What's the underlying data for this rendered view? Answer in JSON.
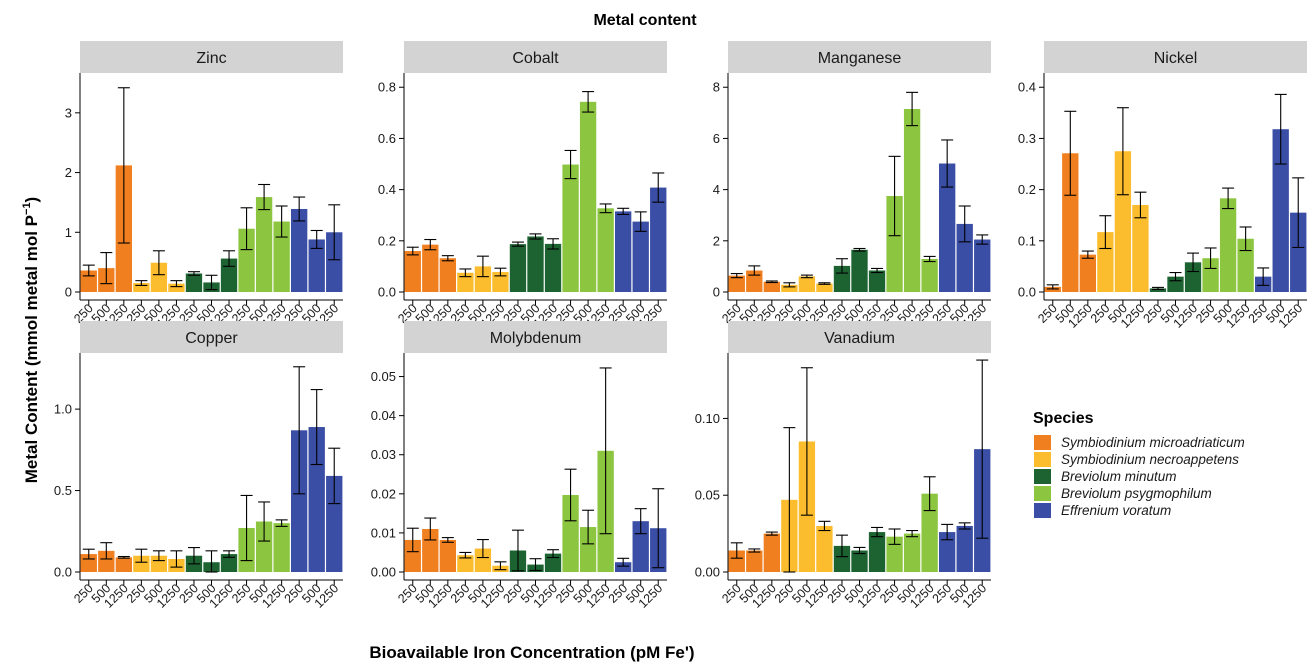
{
  "chart_data": {
    "type": "bar",
    "title": "Metal content",
    "xlabel": "Bioavailable Iron Concentration (pM Fe')",
    "ylabel": "Metal Content (mmol metal mol P",
    "ylabel_sup": "−1",
    "ylabel_close": ")",
    "categories": [
      "250",
      "500",
      "1250",
      "250",
      "500",
      "1250",
      "250",
      "500",
      "1250",
      "250",
      "500",
      "1250",
      "250",
      "500",
      "1250"
    ],
    "category_species": [
      0,
      0,
      0,
      1,
      1,
      1,
      2,
      2,
      2,
      3,
      3,
      3,
      4,
      4,
      4
    ],
    "legend": {
      "title": "Species",
      "entries": [
        {
          "name": "Symbiodinium microadriaticum",
          "color": "#f0801f"
        },
        {
          "name": "Symbiodinium necroappetens",
          "color": "#fbbd2d"
        },
        {
          "name": "Breviolum minutum",
          "color": "#1d6332"
        },
        {
          "name": "Breviolum psygmophilum",
          "color": "#8cc540"
        },
        {
          "name": "Effrenium voratum",
          "color": "#3a4ea5"
        }
      ]
    },
    "panels": [
      {
        "metal": "Zinc",
        "ylim": [
          0,
          3.6
        ],
        "yticks": [
          0,
          1,
          2,
          3
        ],
        "tick_labels": [
          "0",
          "1",
          "2",
          "3"
        ],
        "values": [
          0.36,
          0.4,
          2.12,
          0.15,
          0.49,
          0.14,
          0.31,
          0.16,
          0.56,
          1.06,
          1.59,
          1.18,
          1.39,
          0.88,
          1.0
        ],
        "errors": [
          0.09,
          0.26,
          1.3,
          0.04,
          0.2,
          0.05,
          0.03,
          0.12,
          0.13,
          0.35,
          0.21,
          0.26,
          0.2,
          0.15,
          0.46
        ]
      },
      {
        "metal": "Cobalt",
        "ylim": [
          0,
          0.84
        ],
        "yticks": [
          0,
          0.2,
          0.4,
          0.6,
          0.8
        ],
        "tick_labels": [
          "0.0",
          "0.2",
          "0.4",
          "0.6",
          "0.8"
        ],
        "values": [
          0.16,
          0.185,
          0.132,
          0.075,
          0.1,
          0.078,
          0.187,
          0.217,
          0.188,
          0.498,
          0.743,
          0.327,
          0.315,
          0.275,
          0.408
        ],
        "errors": [
          0.015,
          0.02,
          0.01,
          0.015,
          0.04,
          0.015,
          0.008,
          0.01,
          0.02,
          0.055,
          0.04,
          0.017,
          0.012,
          0.038,
          0.057
        ]
      },
      {
        "metal": "Manganese",
        "ylim": [
          0,
          8.4
        ],
        "yticks": [
          0,
          2,
          4,
          6,
          8
        ],
        "tick_labels": [
          "0",
          "2",
          "4",
          "6",
          "8"
        ],
        "values": [
          0.64,
          0.84,
          0.4,
          0.28,
          0.61,
          0.33,
          1.02,
          1.65,
          0.84,
          3.75,
          7.15,
          1.29,
          5.02,
          2.66,
          2.05
        ],
        "errors": [
          0.08,
          0.18,
          0.03,
          0.08,
          0.05,
          0.03,
          0.28,
          0.05,
          0.08,
          1.55,
          0.65,
          0.1,
          0.92,
          0.7,
          0.18
        ]
      },
      {
        "metal": "Nickel",
        "ylim": [
          0,
          0.42
        ],
        "yticks": [
          0,
          0.1,
          0.2,
          0.3,
          0.4
        ],
        "tick_labels": [
          "0.0",
          "0.1",
          "0.2",
          "0.3",
          "0.4"
        ],
        "values": [
          0.01,
          0.271,
          0.073,
          0.117,
          0.275,
          0.17,
          0.007,
          0.03,
          0.058,
          0.066,
          0.183,
          0.104,
          0.03,
          0.318,
          0.155
        ],
        "errors": [
          0.004,
          0.082,
          0.007,
          0.032,
          0.085,
          0.025,
          0.002,
          0.008,
          0.018,
          0.02,
          0.02,
          0.023,
          0.017,
          0.068,
          0.068
        ]
      },
      {
        "metal": "Copper",
        "ylim": [
          0,
          1.32
        ],
        "yticks": [
          0,
          0.5,
          1.0
        ],
        "tick_labels": [
          "0.0",
          "0.5",
          "1.0"
        ],
        "values": [
          0.11,
          0.13,
          0.09,
          0.1,
          0.1,
          0.08,
          0.1,
          0.06,
          0.11,
          0.27,
          0.31,
          0.3,
          0.87,
          0.89,
          0.59
        ],
        "errors": [
          0.03,
          0.05,
          0.005,
          0.04,
          0.03,
          0.05,
          0.05,
          0.07,
          0.02,
          0.2,
          0.12,
          0.02,
          0.39,
          0.23,
          0.17
        ]
      },
      {
        "metal": "Molybdenum",
        "ylim": [
          0,
          0.055
        ],
        "yticks": [
          0,
          0.01,
          0.02,
          0.03,
          0.04,
          0.05
        ],
        "tick_labels": [
          "0.00",
          "0.01",
          "0.02",
          "0.03",
          "0.04",
          "0.05"
        ],
        "values": [
          0.0082,
          0.011,
          0.0082,
          0.0043,
          0.006,
          0.0016,
          0.0055,
          0.0019,
          0.0047,
          0.0197,
          0.0115,
          0.031,
          0.0025,
          0.013,
          0.0112
        ],
        "errors": [
          0.003,
          0.0028,
          0.0006,
          0.0007,
          0.0023,
          0.001,
          0.0052,
          0.0015,
          0.001,
          0.0066,
          0.0043,
          0.0212,
          0.001,
          0.0032,
          0.0101
        ]
      },
      {
        "metal": "Vanadium",
        "ylim": [
          0,
          0.14
        ],
        "yticks": [
          0,
          0.05,
          0.1
        ],
        "tick_labels": [
          "0.00",
          "0.05",
          "0.10"
        ],
        "values": [
          0.014,
          0.014,
          0.025,
          0.047,
          0.085,
          0.03,
          0.017,
          0.014,
          0.026,
          0.023,
          0.025,
          0.051,
          0.026,
          0.03,
          0.08
        ],
        "errors": [
          0.005,
          0.001,
          0.001,
          0.047,
          0.048,
          0.003,
          0.007,
          0.002,
          0.003,
          0.005,
          0.002,
          0.011,
          0.005,
          0.002,
          0.058
        ]
      }
    ]
  }
}
